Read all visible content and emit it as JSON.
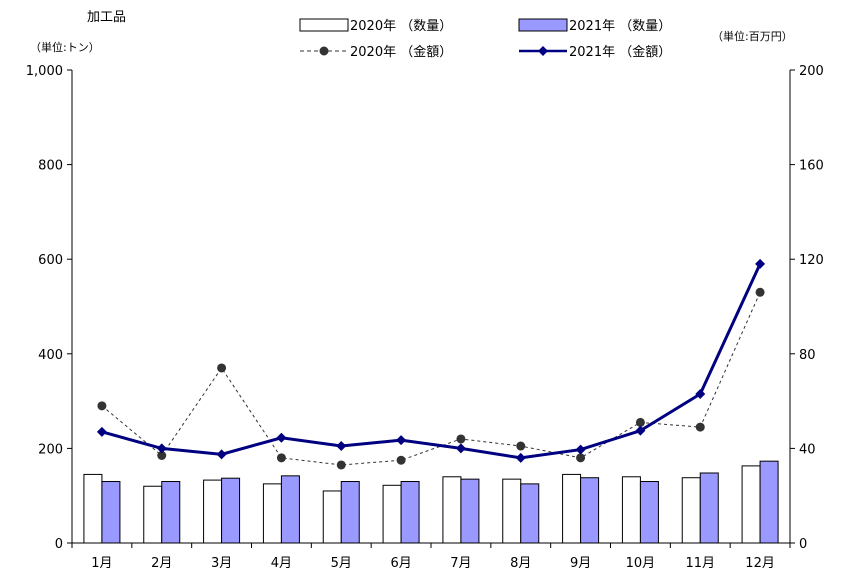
{
  "chart_data": {
    "type": "bar",
    "title": "加工品",
    "left_unit": "（単位:トン）",
    "right_unit": "（単位:百万円）",
    "categories": [
      "1月",
      "2月",
      "3月",
      "4月",
      "5月",
      "6月",
      "7月",
      "8月",
      "9月",
      "10月",
      "11月",
      "12月"
    ],
    "left_axis": {
      "ylim": [
        0,
        1000
      ],
      "ticks": [
        "0",
        "200",
        "400",
        "600",
        "800",
        "1,000"
      ]
    },
    "right_axis": {
      "ylim": [
        0,
        200
      ],
      "ticks": [
        "0",
        "40",
        "80",
        "120",
        "160",
        "200"
      ]
    },
    "series": [
      {
        "name": "2020年 （数量）",
        "type": "bar",
        "axis": "left",
        "color": "#ffffff",
        "stroke": "#000000",
        "values": [
          145,
          120,
          133,
          125,
          110,
          122,
          140,
          135,
          145,
          140,
          138,
          163
        ]
      },
      {
        "name": "2021年 （数量）",
        "type": "bar",
        "axis": "left",
        "color": "#9999ff",
        "stroke": "#000000",
        "values": [
          130,
          130,
          137,
          142,
          130,
          130,
          135,
          125,
          138,
          130,
          148,
          173
        ]
      },
      {
        "name": "2020年 （金額）",
        "type": "line",
        "axis": "right",
        "color": "#333333",
        "dashed": true,
        "marker": "circle",
        "values": [
          58,
          37,
          74,
          36,
          33,
          35,
          44,
          41,
          36,
          51,
          49,
          106
        ]
      },
      {
        "name": "2021年 （金額）",
        "type": "line",
        "axis": "right",
        "color": "#000080",
        "dashed": false,
        "marker": "diamond",
        "values": [
          47,
          40,
          37.5,
          44.5,
          41,
          43.5,
          40,
          36,
          39.5,
          47.5,
          63,
          118
        ]
      }
    ]
  }
}
